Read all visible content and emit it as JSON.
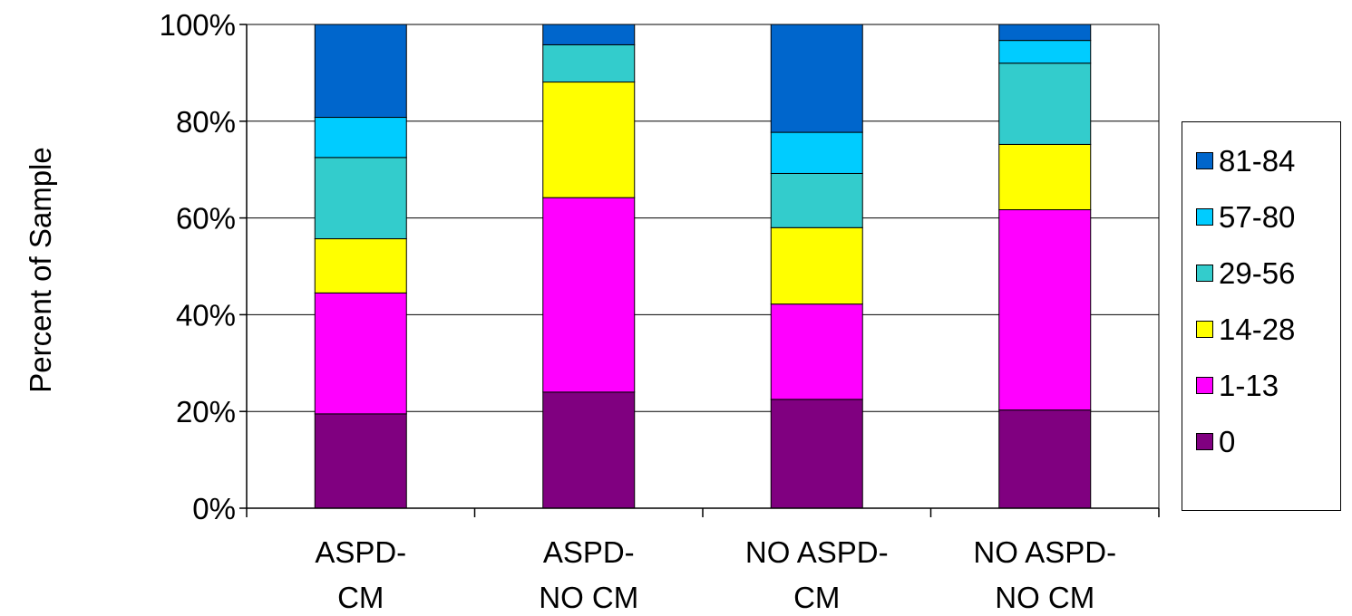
{
  "chart_data": {
    "type": "bar",
    "stacked": true,
    "percent_stacked": true,
    "categories": [
      [
        "ASPD-",
        "CM"
      ],
      [
        "ASPD-",
        "NO CM"
      ],
      [
        "NO ASPD-",
        "CM"
      ],
      [
        "NO ASPD-",
        "NO CM"
      ]
    ],
    "ylabel": "Percent of Sample",
    "xlabel": "",
    "ylim": [
      0,
      100
    ],
    "yticks": [
      "0%",
      "20%",
      "40%",
      "60%",
      "80%",
      "100%"
    ],
    "grid": "horizontal",
    "legend_position": "right",
    "series": [
      {
        "name": "0",
        "color": "#800080",
        "values": [
          19.5,
          24.0,
          22.5,
          20.3
        ]
      },
      {
        "name": "1-13",
        "color": "#FF00FF",
        "values": [
          25.0,
          40.2,
          19.7,
          41.4
        ]
      },
      {
        "name": "14-28",
        "color": "#FFFF00",
        "values": [
          11.2,
          23.9,
          15.8,
          13.5
        ]
      },
      {
        "name": "29-56",
        "color": "#33CCCC",
        "values": [
          16.8,
          7.7,
          11.2,
          16.8
        ]
      },
      {
        "name": "57-80",
        "color": "#00CCFF",
        "values": [
          8.3,
          0.0,
          8.5,
          4.7
        ]
      },
      {
        "name": "81-84",
        "color": "#0066CC",
        "values": [
          19.2,
          4.2,
          22.3,
          3.3
        ]
      }
    ]
  }
}
